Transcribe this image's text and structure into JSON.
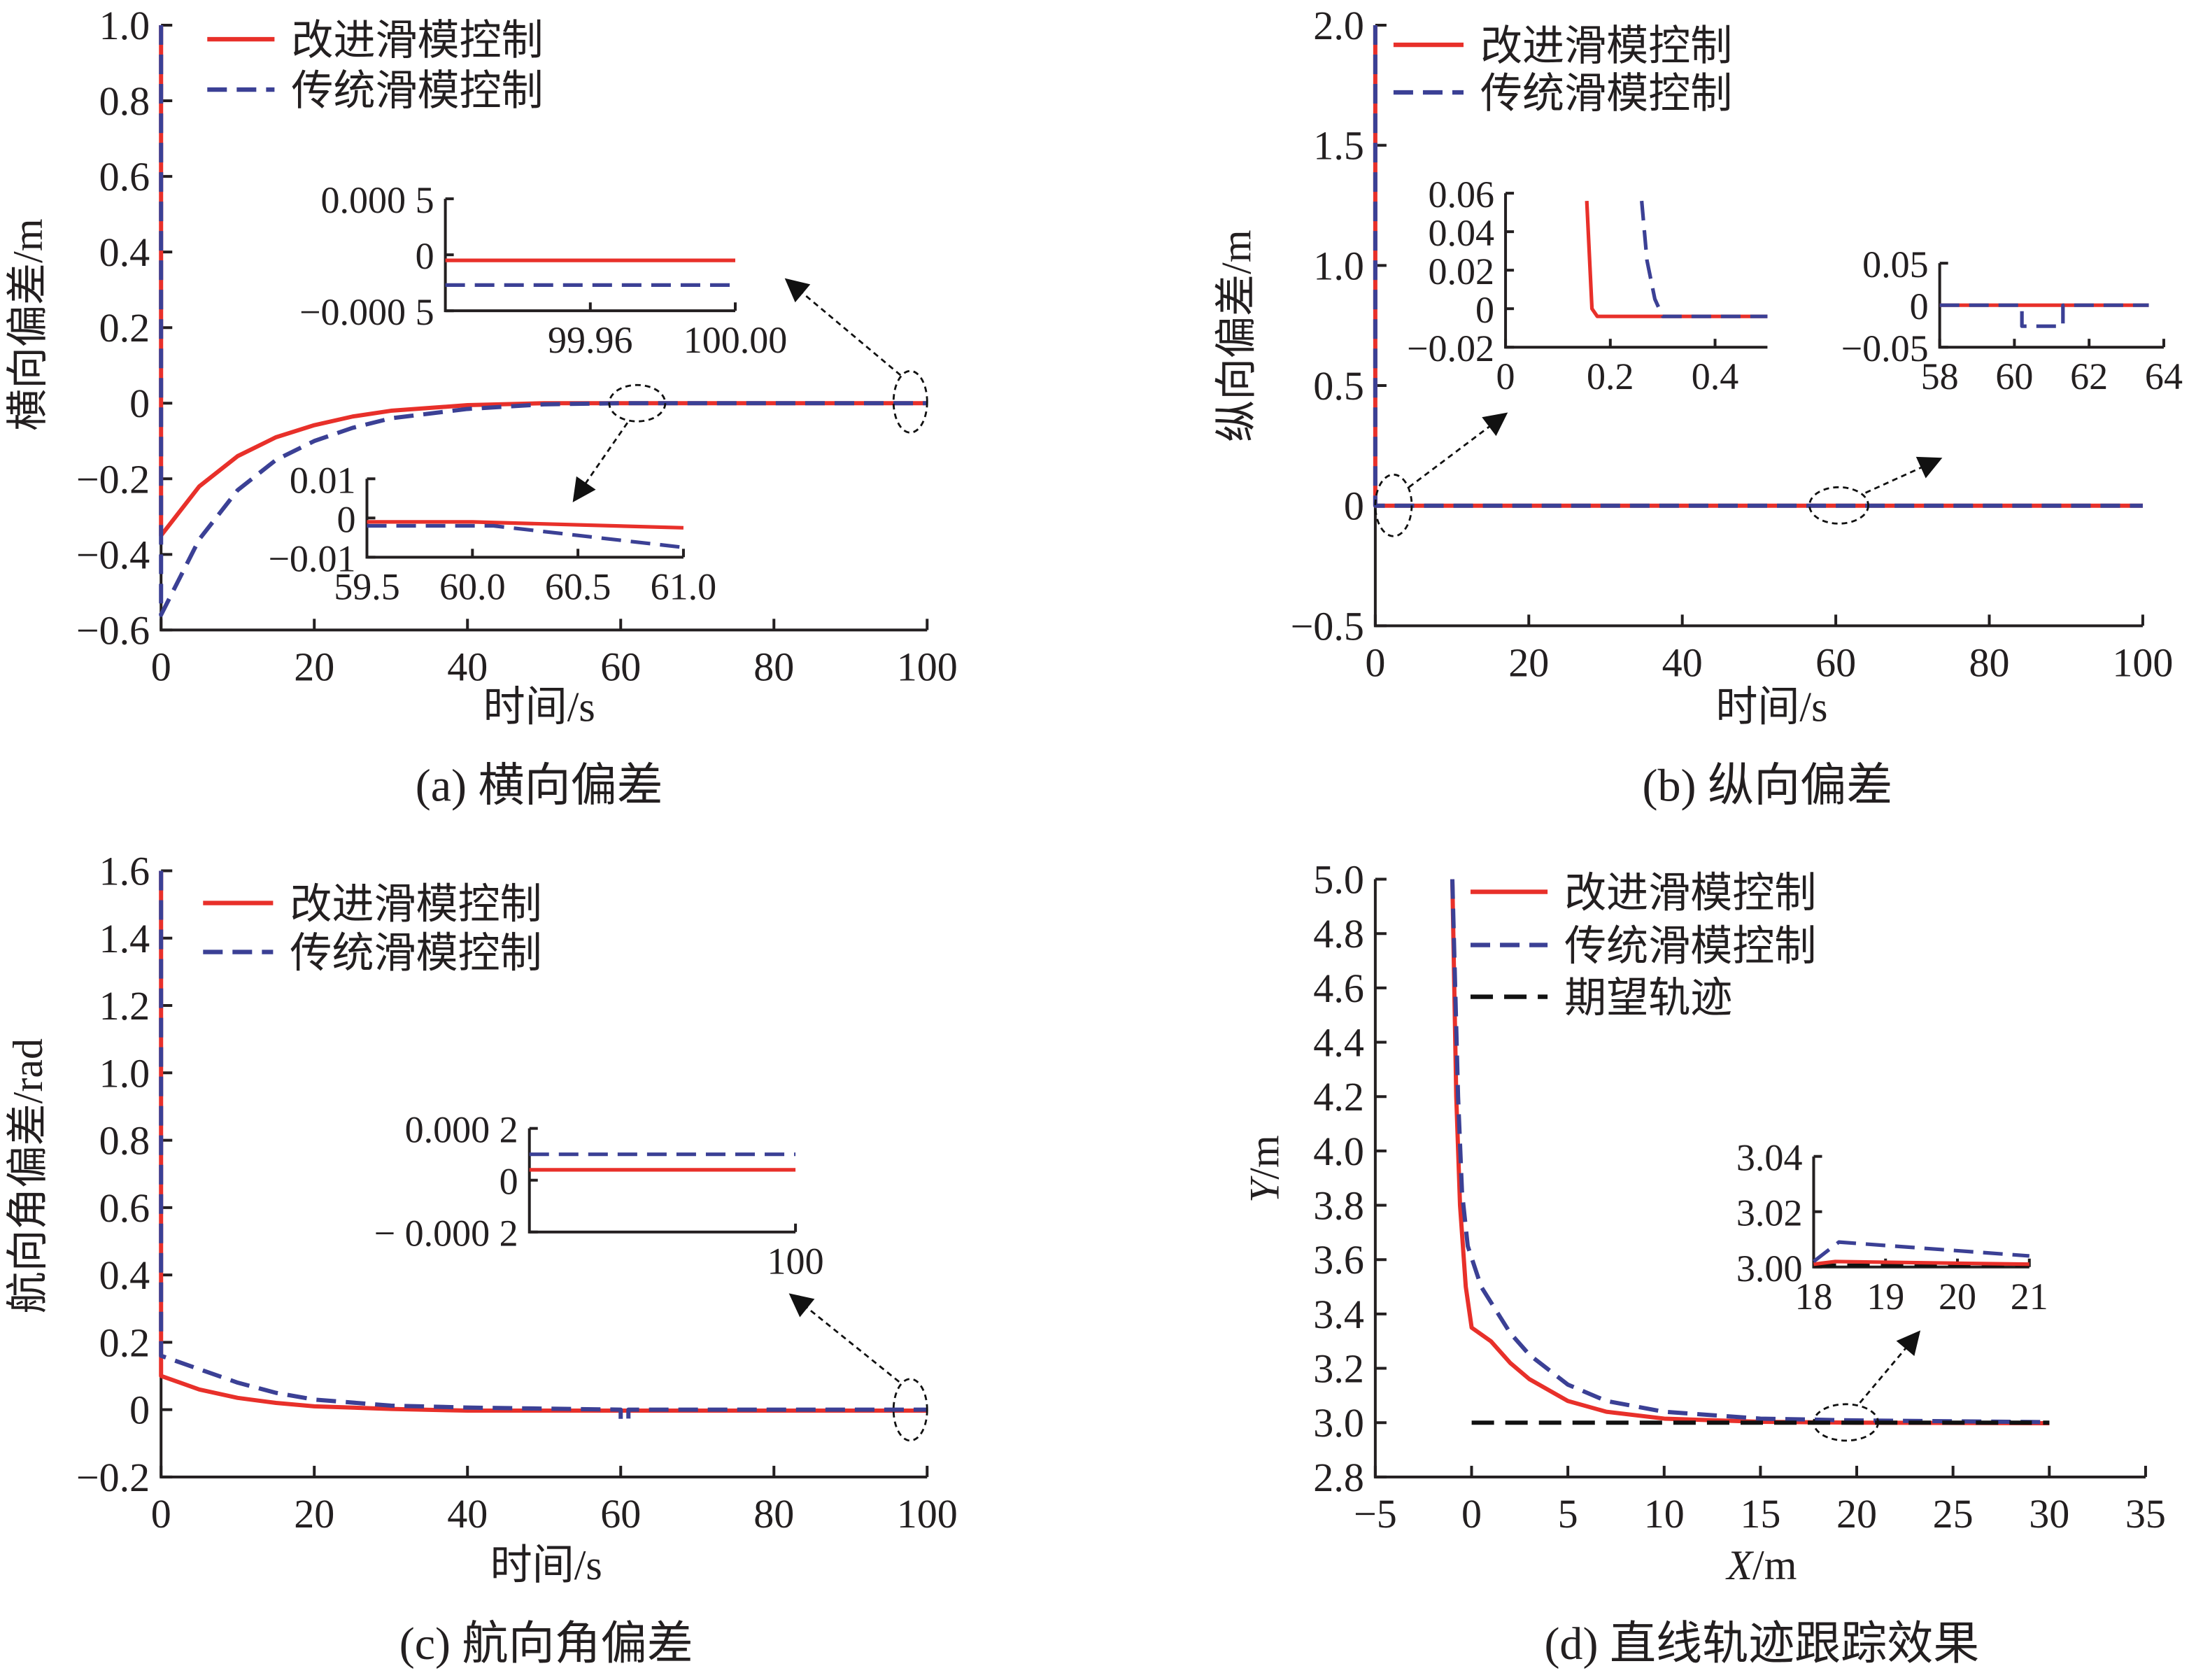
{
  "colors": {
    "improved": "#e8302a",
    "traditional": "#3b4095",
    "desired": "#111111"
  },
  "chart_data": [
    {
      "type": "line",
      "caption": "(a)  横向偏差",
      "xlabel": "时间/s",
      "ylabel": "横向偏差/m",
      "xlim": [
        0,
        100
      ],
      "ylim": [
        -0.6,
        1.0
      ],
      "xticks": [
        {
          "v": 0,
          "label": "0"
        },
        {
          "v": 20,
          "label": "20"
        },
        {
          "v": 40,
          "label": "40"
        },
        {
          "v": 60,
          "label": "60"
        },
        {
          "v": 80,
          "label": "80"
        },
        {
          "v": 100,
          "label": "100"
        }
      ],
      "yticks": [
        {
          "v": 1.0,
          "label": "1.0"
        },
        {
          "v": 0.8,
          "label": "0.8"
        },
        {
          "v": 0.6,
          "label": "0.6"
        },
        {
          "v": 0.4,
          "label": "0.4"
        },
        {
          "v": 0.2,
          "label": "0.2"
        },
        {
          "v": 0,
          "label": "0"
        },
        {
          "v": -0.2,
          "label": "−0.2"
        },
        {
          "v": -0.4,
          "label": "−0.4"
        },
        {
          "v": -0.6,
          "label": "−0.6"
        }
      ],
      "legend": [
        "改进滑模控制",
        "传统滑模控制"
      ],
      "series": [
        {
          "name": "改进滑模控制",
          "key": "improved",
          "style": "solid",
          "x": [
            0,
            0,
            5,
            10,
            15,
            20,
            25,
            30,
            40,
            50,
            100
          ],
          "y": [
            1.0,
            -0.35,
            -0.22,
            -0.14,
            -0.09,
            -0.058,
            -0.035,
            -0.02,
            -0.005,
            0,
            0
          ]
        },
        {
          "name": "传统滑模控制",
          "key": "traditional",
          "style": "dashed",
          "x": [
            0,
            0,
            5,
            10,
            15,
            20,
            25,
            30,
            40,
            50,
            60,
            100
          ],
          "y": [
            1.0,
            -0.56,
            -0.36,
            -0.23,
            -0.15,
            -0.1,
            -0.065,
            -0.04,
            -0.015,
            -0.003,
            0,
            0
          ]
        }
      ],
      "insets": [
        {
          "xlim": [
            99.92,
            100.0
          ],
          "ylim": [
            -0.0005,
            0.0005
          ],
          "xticks": [
            {
              "v": 99.96,
              "label": "99.96"
            },
            {
              "v": 100.0,
              "label": "100.00"
            }
          ],
          "yticks": [
            {
              "v": 0.0005,
              "label": "0.000 5"
            },
            {
              "v": 0,
              "label": "0"
            },
            {
              "v": -0.0005,
              "label": "−0.000 5"
            }
          ],
          "series": [
            {
              "key": "improved",
              "style": "solid",
              "x": [
                99.92,
                100.0
              ],
              "y": [
                -5e-05,
                -5e-05
              ]
            },
            {
              "key": "traditional",
              "style": "dashed",
              "x": [
                99.92,
                100.0
              ],
              "y": [
                -0.00027,
                -0.00027
              ]
            }
          ]
        },
        {
          "xlim": [
            59.5,
            61.0
          ],
          "ylim": [
            -0.01,
            0.01
          ],
          "xticks": [
            {
              "v": 59.5,
              "label": "59.5"
            },
            {
              "v": 60.0,
              "label": "60.0"
            },
            {
              "v": 60.5,
              "label": "60.5"
            },
            {
              "v": 61.0,
              "label": "61.0"
            }
          ],
          "yticks": [
            {
              "v": 0.01,
              "label": "0.01"
            },
            {
              "v": 0,
              "label": "0"
            },
            {
              "v": -0.01,
              "label": "−0.01"
            }
          ],
          "series": [
            {
              "key": "improved",
              "style": "solid",
              "x": [
                59.5,
                60.0,
                61.0
              ],
              "y": [
                -0.001,
                -0.001,
                -0.0025
              ]
            },
            {
              "key": "traditional",
              "style": "dashed",
              "x": [
                59.5,
                60.1,
                61.0
              ],
              "y": [
                -0.002,
                -0.002,
                -0.0075
              ]
            }
          ]
        }
      ]
    },
    {
      "type": "line",
      "caption": "(b)  纵向偏差",
      "xlabel": "时间/s",
      "ylabel": "纵向偏差/m",
      "xlim": [
        0,
        100
      ],
      "ylim": [
        -0.5,
        2.0
      ],
      "xticks": [
        {
          "v": 0,
          "label": "0"
        },
        {
          "v": 20,
          "label": "20"
        },
        {
          "v": 40,
          "label": "40"
        },
        {
          "v": 60,
          "label": "60"
        },
        {
          "v": 80,
          "label": "80"
        },
        {
          "v": 100,
          "label": "100"
        }
      ],
      "yticks": [
        {
          "v": 2.0,
          "label": "2.0"
        },
        {
          "v": 1.5,
          "label": "1.5"
        },
        {
          "v": 1.0,
          "label": "1.0"
        },
        {
          "v": 0.5,
          "label": "0.5"
        },
        {
          "v": 0,
          "label": "0"
        },
        {
          "v": -0.5,
          "label": "−0.5"
        }
      ],
      "legend": [
        "改进滑模控制",
        "传统滑模控制"
      ],
      "series": [
        {
          "name": "改进滑模控制",
          "key": "improved",
          "style": "solid",
          "x": [
            0,
            0,
            100
          ],
          "y": [
            2.0,
            0,
            0
          ]
        },
        {
          "name": "传统滑模控制",
          "key": "traditional",
          "style": "dashed",
          "x": [
            0,
            0,
            100
          ],
          "y": [
            2.0,
            0,
            0
          ]
        }
      ],
      "insets": [
        {
          "xlim": [
            0,
            0.5
          ],
          "ylim": [
            -0.02,
            0.06
          ],
          "xticks": [
            {
              "v": 0,
              "label": "0"
            },
            {
              "v": 0.2,
              "label": "0.2"
            },
            {
              "v": 0.4,
              "label": "0.4"
            }
          ],
          "yticks": [
            {
              "v": 0.06,
              "label": "0.06"
            },
            {
              "v": 0.04,
              "label": "0.04"
            },
            {
              "v": 0.02,
              "label": "0.02"
            },
            {
              "v": 0,
              "label": "0"
            },
            {
              "v": -0.02,
              "label": "−0.02"
            }
          ],
          "series": [
            {
              "key": "improved",
              "style": "solid",
              "x": [
                0.155,
                0.165,
                0.175,
                0.5
              ],
              "y": [
                0.056,
                0.0,
                -0.004,
                -0.004
              ]
            },
            {
              "key": "traditional",
              "style": "dashed",
              "x": [
                0.26,
                0.27,
                0.285,
                0.3,
                0.5
              ],
              "y": [
                0.056,
                0.025,
                0.005,
                -0.004,
                -0.004
              ]
            }
          ]
        },
        {
          "xlim": [
            58,
            64
          ],
          "ylim": [
            -0.05,
            0.05
          ],
          "xticks": [
            {
              "v": 58,
              "label": "58"
            },
            {
              "v": 60,
              "label": "60"
            },
            {
              "v": 62,
              "label": "62"
            },
            {
              "v": 64,
              "label": "64"
            }
          ],
          "yticks": [
            {
              "v": 0.05,
              "label": "0.05"
            },
            {
              "v": 0,
              "label": "0"
            },
            {
              "v": -0.05,
              "label": "−0.05"
            }
          ],
          "series": [
            {
              "key": "improved",
              "style": "solid",
              "x": [
                58,
                63.6
              ],
              "y": [
                0,
                0
              ]
            },
            {
              "key": "traditional",
              "style": "dashed",
              "x": [
                58,
                60.2,
                60.2,
                61.3,
                61.3,
                63.6
              ],
              "y": [
                0,
                0,
                -0.025,
                -0.025,
                0,
                0
              ]
            }
          ]
        }
      ]
    },
    {
      "type": "line",
      "caption": "(c)  航向角偏差",
      "xlabel": "时间/s",
      "ylabel": "航向角偏差/rad",
      "xlim": [
        0,
        100
      ],
      "ylim": [
        -0.2,
        1.6
      ],
      "xticks": [
        {
          "v": 0,
          "label": "0"
        },
        {
          "v": 20,
          "label": "20"
        },
        {
          "v": 40,
          "label": "40"
        },
        {
          "v": 60,
          "label": "60"
        },
        {
          "v": 80,
          "label": "80"
        },
        {
          "v": 100,
          "label": "100"
        }
      ],
      "yticks": [
        {
          "v": 1.6,
          "label": "1.6"
        },
        {
          "v": 1.4,
          "label": "1.4"
        },
        {
          "v": 1.2,
          "label": "1.2"
        },
        {
          "v": 1.0,
          "label": "1.0"
        },
        {
          "v": 0.8,
          "label": "0.8"
        },
        {
          "v": 0.6,
          "label": "0.6"
        },
        {
          "v": 0.4,
          "label": "0.4"
        },
        {
          "v": 0.2,
          "label": "0.2"
        },
        {
          "v": 0,
          "label": "0"
        },
        {
          "v": -0.2,
          "label": "−0.2"
        }
      ],
      "legend": [
        "改进滑模控制",
        "传统滑模控制"
      ],
      "series": [
        {
          "name": "改进滑模控制",
          "key": "improved",
          "style": "solid",
          "x": [
            0,
            0,
            5,
            10,
            15,
            20,
            30,
            40,
            100
          ],
          "y": [
            1.6,
            0.1,
            0.06,
            0.035,
            0.02,
            0.01,
            0.002,
            -0.003,
            -0.003
          ]
        },
        {
          "name": "传统滑模控制",
          "key": "traditional",
          "style": "dashed",
          "x": [
            0,
            0,
            5,
            10,
            15,
            20,
            30,
            40,
            60,
            60,
            61,
            61,
            100
          ],
          "y": [
            1.6,
            0.16,
            0.12,
            0.08,
            0.05,
            0.03,
            0.012,
            0.006,
            0.0,
            -0.03,
            -0.03,
            0,
            0
          ]
        }
      ],
      "insets": [
        {
          "xlim": [
            99.9,
            100.0
          ],
          "ylim": [
            -0.0002,
            0.0002
          ],
          "xticks": [
            {
              "v": 100,
              "label": "100"
            }
          ],
          "yticks": [
            {
              "v": 0.0002,
              "label": "0.000 2"
            },
            {
              "v": 0,
              "label": "0"
            },
            {
              "v": -0.0002,
              "label": "− 0.000 2"
            }
          ],
          "series": [
            {
              "key": "improved",
              "style": "solid",
              "x": [
                99.9,
                100.0
              ],
              "y": [
                4e-05,
                4e-05
              ]
            },
            {
              "key": "traditional",
              "style": "dashed",
              "x": [
                99.9,
                100.0
              ],
              "y": [
                0.0001,
                0.0001
              ]
            }
          ]
        }
      ]
    },
    {
      "type": "line",
      "caption": "(d)  直线轨迹跟踪效果",
      "xlabel": "/m",
      "xlabel_var": "X",
      "ylabel": "/m",
      "ylabel_var": "Y",
      "xlim": [
        -5,
        35
      ],
      "ylim": [
        2.8,
        5.0
      ],
      "xticks": [
        {
          "v": -5,
          "label": "−5"
        },
        {
          "v": 0,
          "label": "0"
        },
        {
          "v": 5,
          "label": "5"
        },
        {
          "v": 10,
          "label": "10"
        },
        {
          "v": 15,
          "label": "15"
        },
        {
          "v": 20,
          "label": "20"
        },
        {
          "v": 25,
          "label": "25"
        },
        {
          "v": 30,
          "label": "30"
        },
        {
          "v": 35,
          "label": "35"
        }
      ],
      "yticks": [
        {
          "v": 5.0,
          "label": "5.0"
        },
        {
          "v": 4.8,
          "label": "4.8"
        },
        {
          "v": 4.6,
          "label": "4.6"
        },
        {
          "v": 4.4,
          "label": "4.4"
        },
        {
          "v": 4.2,
          "label": "4.2"
        },
        {
          "v": 4.0,
          "label": "4.0"
        },
        {
          "v": 3.8,
          "label": "3.8"
        },
        {
          "v": 3.6,
          "label": "3.6"
        },
        {
          "v": 3.4,
          "label": "3.4"
        },
        {
          "v": 3.2,
          "label": "3.2"
        },
        {
          "v": 3.0,
          "label": "3.0"
        },
        {
          "v": 2.8,
          "label": "2.8"
        }
      ],
      "legend": [
        "改进滑模控制",
        "传统滑模控制",
        "期望轨迹"
      ],
      "series": [
        {
          "name": "改进滑模控制",
          "key": "improved",
          "style": "solid",
          "x": [
            -1,
            -0.8,
            -0.6,
            -0.3,
            0,
            1,
            2,
            3,
            5,
            7,
            10,
            15,
            20,
            30
          ],
          "y": [
            5.0,
            4.2,
            3.8,
            3.5,
            3.35,
            3.3,
            3.22,
            3.16,
            3.08,
            3.04,
            3.015,
            3.003,
            3.0,
            2.998
          ]
        },
        {
          "name": "传统滑模控制",
          "key": "traditional",
          "style": "dashed",
          "x": [
            -1,
            -0.7,
            -0.5,
            -0.2,
            0.5,
            2,
            3,
            5,
            7,
            10,
            15,
            20,
            30
          ],
          "y": [
            5.0,
            4.2,
            3.85,
            3.65,
            3.5,
            3.33,
            3.25,
            3.14,
            3.08,
            3.04,
            3.015,
            3.008,
            3.002
          ]
        },
        {
          "name": "期望轨迹",
          "key": "desired",
          "style": "dashed",
          "x": [
            0,
            30
          ],
          "y": [
            3.0,
            3.0
          ]
        }
      ],
      "insets": [
        {
          "xlim": [
            18,
            21
          ],
          "ylim": [
            3.0,
            3.04
          ],
          "xticks": [
            {
              "v": 18,
              "label": "18"
            },
            {
              "v": 19,
              "label": "19"
            },
            {
              "v": 20,
              "label": "20"
            },
            {
              "v": 21,
              "label": "21"
            }
          ],
          "yticks": [
            {
              "v": 3.04,
              "label": "3.04"
            },
            {
              "v": 3.02,
              "label": "3.02"
            },
            {
              "v": 3.0,
              "label": "3.00"
            }
          ],
          "series": [
            {
              "key": "desired",
              "style": "dashed",
              "x": [
                18,
                21
              ],
              "y": [
                3.0006,
                3.0006
              ]
            },
            {
              "key": "improved",
              "style": "solid",
              "x": [
                18,
                18.3,
                21
              ],
              "y": [
                3.001,
                3.002,
                3.001
              ]
            },
            {
              "key": "traditional",
              "style": "dashed",
              "x": [
                18,
                18.35,
                21
              ],
              "y": [
                3.002,
                3.009,
                3.004
              ]
            }
          ]
        }
      ]
    }
  ]
}
